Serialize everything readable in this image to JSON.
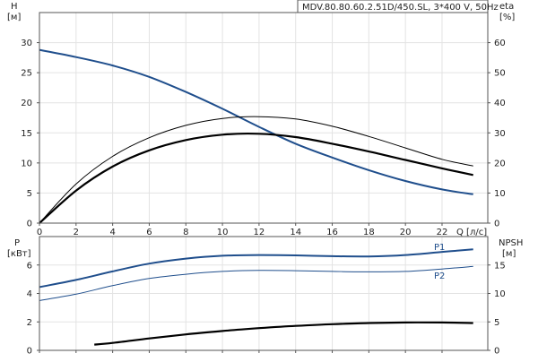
{
  "chart_data": [
    {
      "type": "line",
      "title": "MDV.80.80.60.2.51D/450.SL, 3*400 V, 50Hz",
      "xlabel": "Q [л/с]",
      "ylabel_left": [
        "H",
        "[м]"
      ],
      "ylabel_right": [
        "eta",
        "[%]"
      ],
      "xlim": [
        0,
        24.5
      ],
      "xticks": [
        0,
        2,
        4,
        6,
        8,
        10,
        12,
        14,
        16,
        18,
        20,
        22
      ],
      "ylim_left": [
        0,
        35
      ],
      "yticks_left": [
        0,
        5,
        10,
        15,
        20,
        25,
        30
      ],
      "ylim_right": [
        0,
        70
      ],
      "yticks_right": [
        0,
        10,
        20,
        30,
        40,
        50,
        60
      ],
      "grid": true,
      "series": [
        {
          "axis": "left",
          "color": "#1f4e8c",
          "width": 2,
          "x": [
            0,
            2,
            4,
            6,
            8,
            10,
            12,
            14,
            16,
            18,
            20,
            22,
            23.7
          ],
          "y": [
            28.8,
            27.6,
            26.2,
            24.3,
            21.8,
            19.0,
            16.0,
            13.2,
            10.9,
            8.8,
            7.0,
            5.6,
            4.8
          ]
        },
        {
          "axis": "right",
          "color": "#000000",
          "width": 2.2,
          "x": [
            0,
            2,
            4,
            6,
            8,
            10,
            12,
            14,
            16,
            18,
            20,
            22,
            23.7
          ],
          "y": [
            0,
            10.8,
            18.8,
            24.2,
            27.6,
            29.4,
            29.7,
            28.6,
            26.4,
            23.8,
            21.0,
            18.2,
            16.0
          ]
        },
        {
          "axis": "right",
          "color": "#000000",
          "width": 1,
          "x": [
            0,
            2,
            4,
            6,
            8,
            10,
            12,
            14,
            16,
            18,
            20,
            22,
            23.7
          ],
          "y": [
            0,
            13.0,
            22.2,
            28.4,
            32.5,
            34.8,
            35.4,
            34.6,
            32.2,
            28.8,
            25.0,
            21.2,
            19.0
          ]
        }
      ]
    },
    {
      "type": "line",
      "xlim": [
        0,
        24.5
      ],
      "xticks": [
        0,
        2,
        4,
        6,
        8,
        10,
        12,
        14,
        16,
        18,
        20,
        22
      ],
      "ylabel_left": [
        "P",
        "[кВт]"
      ],
      "ylabel_right": [
        "NPSH",
        "[м]"
      ],
      "ylim_left": [
        0,
        8
      ],
      "yticks_left": [
        0,
        2,
        4,
        6
      ],
      "ylim_right": [
        0,
        20
      ],
      "yticks_right": [
        0,
        5,
        10,
        15
      ],
      "grid": true,
      "series": [
        {
          "name": "P1",
          "axis": "left",
          "color": "#1f4e8c",
          "width": 2,
          "x": [
            0,
            2,
            4,
            6,
            8,
            10,
            12,
            14,
            16,
            18,
            20,
            22,
            23.7
          ],
          "y": [
            4.45,
            4.95,
            5.55,
            6.1,
            6.45,
            6.65,
            6.7,
            6.68,
            6.62,
            6.6,
            6.7,
            6.92,
            7.1
          ]
        },
        {
          "name": "P2",
          "axis": "left",
          "color": "#1f4e8c",
          "width": 1,
          "x": [
            0,
            2,
            4,
            6,
            8,
            10,
            12,
            14,
            16,
            18,
            20,
            22,
            23.7
          ],
          "y": [
            3.5,
            3.95,
            4.55,
            5.05,
            5.35,
            5.55,
            5.62,
            5.6,
            5.55,
            5.52,
            5.55,
            5.72,
            5.9
          ]
        },
        {
          "axis": "right",
          "color": "#000000",
          "width": 2.2,
          "x": [
            3,
            4,
            6,
            8,
            10,
            12,
            14,
            16,
            18,
            20,
            22,
            23.7
          ],
          "y": [
            1.0,
            1.3,
            2.1,
            2.8,
            3.4,
            3.9,
            4.3,
            4.6,
            4.8,
            4.9,
            4.9,
            4.8
          ]
        }
      ]
    }
  ]
}
